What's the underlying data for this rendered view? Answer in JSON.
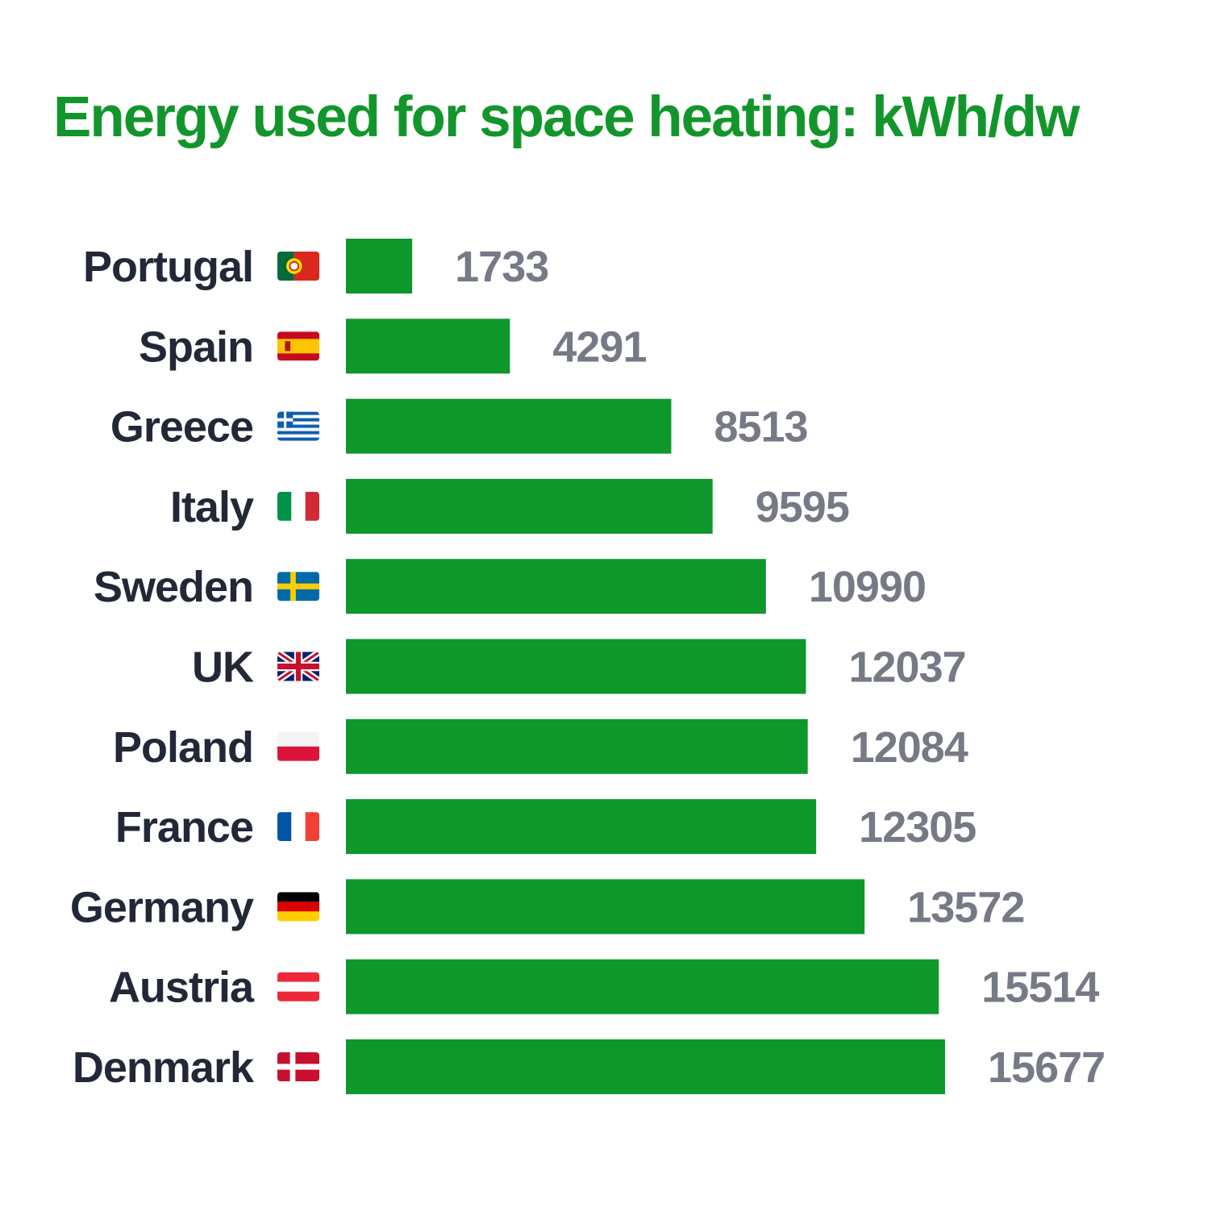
{
  "chart_data": {
    "type": "bar",
    "orientation": "horizontal",
    "title": "Energy used for space heating: kWh/dw",
    "categories": [
      "Portugal",
      "Spain",
      "Greece",
      "Italy",
      "Sweden",
      "UK",
      "Poland",
      "France",
      "Germany",
      "Austria",
      "Denmark"
    ],
    "flag_icons": [
      "portugal-flag-icon",
      "spain-flag-icon",
      "greece-flag-icon",
      "italy-flag-icon",
      "sweden-flag-icon",
      "uk-flag-icon",
      "poland-flag-icon",
      "france-flag-icon",
      "germany-flag-icon",
      "austria-flag-icon",
      "denmark-flag-icon"
    ],
    "values": [
      1733,
      4291,
      8513,
      9595,
      10990,
      12037,
      12084,
      12305,
      13572,
      15514,
      15677
    ],
    "value_labels": [
      "1733",
      "4291",
      "8513",
      "9595",
      "10990",
      "12037",
      "12084",
      "12305",
      "13572",
      "15514",
      "15677"
    ],
    "xlim": [
      0,
      15677
    ],
    "grid": false,
    "legend": "none",
    "colors": {
      "bar": "#0e972b",
      "title": "#12962b",
      "category_text": "#232838",
      "value_text": "#767a86"
    }
  }
}
